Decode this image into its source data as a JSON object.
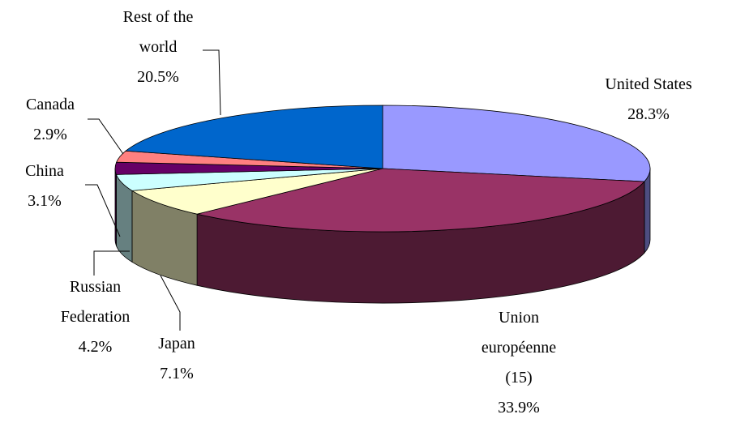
{
  "chart_data": {
    "type": "pie",
    "categories": [
      "United States",
      "Union européenne (15)",
      "Japan",
      "Russian Federation",
      "China",
      "Canada",
      "Rest of the world"
    ],
    "values": [
      28.3,
      33.9,
      7.1,
      4.2,
      3.1,
      2.9,
      20.5
    ],
    "value_labels": [
      "28.3%",
      "33.9%",
      "7.1%",
      "4.2%",
      "3.1%",
      "2.9%",
      "20.5%"
    ],
    "colors": [
      "#9999ff",
      "#993366",
      "#ffffcc",
      "#ccffff",
      "#660066",
      "#ff8080",
      "#0066cc"
    ]
  }
}
